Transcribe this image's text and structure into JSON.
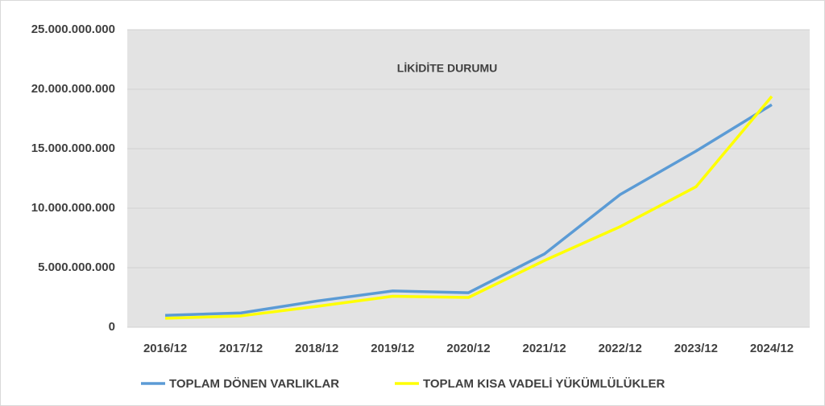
{
  "chart_data": {
    "type": "line",
    "title": "LİKİDİTE DURUMU",
    "categories": [
      "2016/12",
      "2017/12",
      "2018/12",
      "2019/12",
      "2020/12",
      "2021/12",
      "2022/12",
      "2023/12",
      "2024/12"
    ],
    "series": [
      {
        "name": "TOPLAM DÖNEN VARLIKLAR",
        "color": "#5b9bd5",
        "values": [
          1000000000,
          1200000000,
          2200000000,
          3050000000,
          2900000000,
          6150000000,
          11150000000,
          14800000000,
          18700000000
        ]
      },
      {
        "name": "TOPLAM KISA VADELİ YÜKÜMLÜLÜKLER",
        "color": "#ffff00",
        "values": [
          750000000,
          950000000,
          1750000000,
          2600000000,
          2500000000,
          5600000000,
          8450000000,
          11800000000,
          19400000000
        ]
      }
    ],
    "ylim": [
      0,
      25000000000
    ],
    "yticks": [
      0,
      {
        "value": 5000000000,
        "label": "5.000.000.000"
      },
      {
        "value": 10000000000,
        "label": "10.000.000.000"
      },
      {
        "value": 15000000000,
        "label": "15.000.000.000"
      },
      {
        "value": 20000000000,
        "label": "20.000.000.000"
      },
      {
        "value": 25000000000,
        "label": "25.000.000.000"
      }
    ],
    "grid": true,
    "legend": "bottom"
  }
}
